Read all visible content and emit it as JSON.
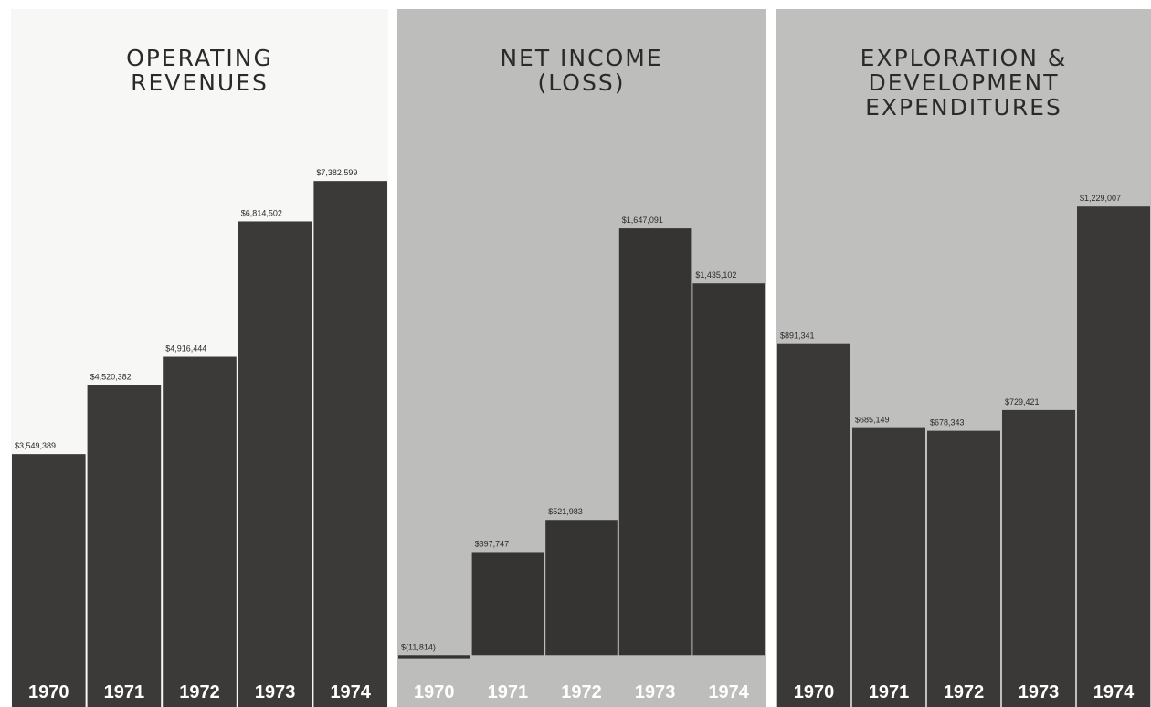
{
  "chart_data": [
    {
      "type": "bar",
      "title": "OPERATING REVENUES",
      "categories": [
        "1970",
        "1971",
        "1972",
        "1973",
        "1974"
      ],
      "values": [
        3549389,
        4520382,
        4916444,
        6814502,
        7382599
      ],
      "value_labels": [
        "$3,549,389",
        "$4,520,382",
        "$4,916,444",
        "$6,814,502",
        "$7,382,599"
      ],
      "ylim": [
        0,
        8000000
      ],
      "color": "#3b3a38",
      "background": "#f7f7f5"
    },
    {
      "type": "bar",
      "title": "NET INCOME (LOSS)",
      "categories": [
        "1970",
        "1971",
        "1972",
        "1973",
        "1974"
      ],
      "values": [
        -11814,
        397747,
        521983,
        1647091,
        1435102
      ],
      "value_labels": [
        "$(11,814)",
        "$397,747",
        "$521,983",
        "$1,647,091",
        "$1,435,102"
      ],
      "ylim": [
        -200000,
        2000000
      ],
      "color": "#353432",
      "background": "#bdbdbb"
    },
    {
      "type": "bar",
      "title": "EXPLORATION & DEVELOPMENT EXPENDITURES",
      "categories": [
        "1970",
        "1971",
        "1972",
        "1973",
        "1974"
      ],
      "values": [
        891341,
        685149,
        678343,
        729421,
        1229007
      ],
      "value_labels": [
        "$891,341",
        "$685,149",
        "$678,343",
        "$729,421",
        "$1,229,007"
      ],
      "ylim": [
        0,
        1400000
      ],
      "color": "#3a3937",
      "background": "#bfbfbd"
    }
  ]
}
